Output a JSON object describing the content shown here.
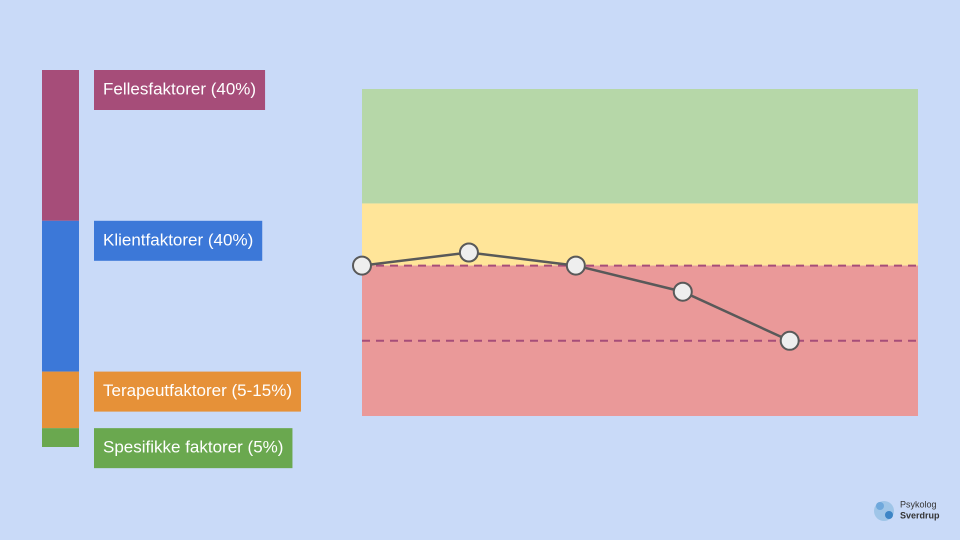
{
  "chart_data": [
    {
      "type": "stacked-bar",
      "categories": [
        null
      ],
      "series": [
        {
          "name": "Fellesfaktorer (40%)",
          "color": "#a64d79",
          "values": [
            40
          ]
        },
        {
          "name": "Klientfaktorer (40%)",
          "color": "#3c78d8",
          "values": [
            40
          ]
        },
        {
          "name": "Terapeutfaktorer (5-15%)",
          "color": "#e69138",
          "values": [
            15
          ]
        },
        {
          "name": "Spesifikke faktorer (5%)",
          "color": "#6aa84f",
          "values": [
            5
          ]
        }
      ],
      "ylim": [
        0,
        100
      ]
    },
    {
      "type": "line",
      "x": [
        0,
        1,
        2,
        3,
        4
      ],
      "xlim": [
        0,
        5.2
      ],
      "ylim": [
        0,
        100
      ],
      "series": [
        {
          "color": "#595959",
          "values": [
            46,
            50,
            46,
            38,
            23
          ]
        }
      ],
      "bands": [
        {
          "from": 65,
          "to": 100,
          "color": "#b6d7a8"
        },
        {
          "from": 46,
          "to": 65,
          "color": "#ffe599"
        },
        {
          "from": 0,
          "to": 46,
          "color": "#ea9999"
        }
      ],
      "thresholds": [
        46,
        23
      ],
      "threshold_color": "#a64d79"
    }
  ],
  "logo": {
    "line1": "Psykolog",
    "line2": "Sverdrup"
  }
}
